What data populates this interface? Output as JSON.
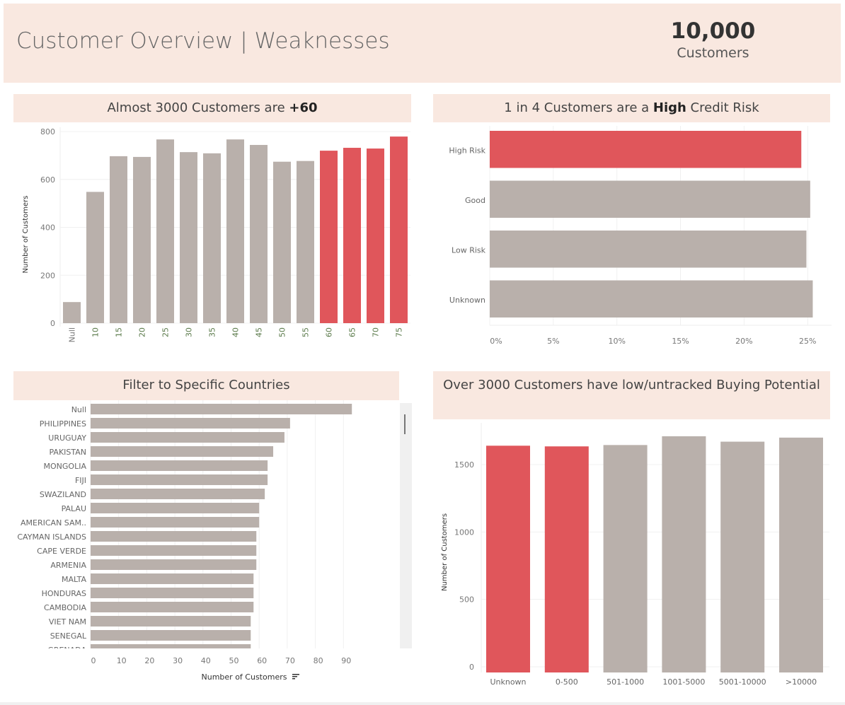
{
  "header": {
    "title": "Customer Overview | Weaknesses",
    "kpi_value": "10,000",
    "kpi_label": "Customers"
  },
  "colors": {
    "highlight": "#e0565b",
    "base": "#b9b0ab",
    "panel_bg": "#f9e8e0"
  },
  "panels": {
    "age": {
      "title_pre": "Almost 3000 Customers are ",
      "title_bold": "+60",
      "title_post": ""
    },
    "credit": {
      "title_pre": "1 in 4 Customers are a ",
      "title_bold": "High",
      "title_post": " Credit Risk"
    },
    "country": {
      "title": "Filter to Specific Countries",
      "sort_icon": "sort-descending-icon"
    },
    "buying": {
      "title": "Over 3000 Customers have low/untracked Buying Potential"
    }
  },
  "chart_data": [
    {
      "type": "bar",
      "orientation": "vertical",
      "ylabel": "Number of Customers",
      "xlabel": "",
      "ylim": [
        0,
        800
      ],
      "yticks": [
        0,
        200,
        400,
        600,
        800
      ],
      "grid": true,
      "categories": [
        "Null",
        "10",
        "15",
        "20",
        "25",
        "30",
        "35",
        "40",
        "45",
        "50",
        "55",
        "60",
        "65",
        "70",
        "75"
      ],
      "values": [
        88,
        548,
        697,
        694,
        767,
        714,
        709,
        767,
        744,
        674,
        677,
        720,
        732,
        729,
        779
      ],
      "highlighted": [
        "60",
        "65",
        "70",
        "75"
      ]
    },
    {
      "type": "bar",
      "orientation": "horizontal",
      "xlabel": "",
      "ylabel": "",
      "xlim": [
        0,
        26
      ],
      "xticks": [
        "0%",
        "5%",
        "10%",
        "15%",
        "20%",
        "25%"
      ],
      "xtick_values": [
        0,
        5,
        10,
        15,
        20,
        25
      ],
      "grid": true,
      "categories": [
        "High Risk",
        "Good",
        "Low Risk",
        "Unknown"
      ],
      "values": [
        24.5,
        25.2,
        24.9,
        25.4
      ],
      "highlighted": [
        "High Risk"
      ]
    },
    {
      "type": "bar",
      "orientation": "horizontal",
      "xlabel": "Number of Customers",
      "xlim": [
        0,
        98
      ],
      "xticks": [
        0,
        10,
        20,
        30,
        40,
        50,
        60,
        70,
        80,
        90
      ],
      "grid": true,
      "categories": [
        "Null",
        "PHILIPPINES",
        "URUGUAY",
        "PAKISTAN",
        "MONGOLIA",
        "FIJI",
        "SWAZILAND",
        "PALAU",
        "AMERICAN SAM..",
        "CAYMAN ISLANDS",
        "CAPE VERDE",
        "ARMENIA",
        "MALTA",
        "HONDURAS",
        "CAMBODIA",
        "VIET NAM",
        "SENEGAL",
        "GRENADA"
      ],
      "values": [
        93,
        71,
        69,
        65,
        63,
        63,
        62,
        60,
        60,
        59,
        59,
        59,
        58,
        58,
        58,
        57,
        57,
        57
      ],
      "highlighted": []
    },
    {
      "type": "bar",
      "orientation": "vertical",
      "ylabel": "Number of Customers",
      "xlabel": "",
      "ylim": [
        0,
        1800
      ],
      "yticks": [
        0,
        500,
        1000,
        1500
      ],
      "grid": true,
      "categories": [
        "Unknown",
        "0-500",
        "501-1000",
        "1001-5000",
        "5001-10000",
        ">10000"
      ],
      "values": [
        1640,
        1635,
        1645,
        1710,
        1670,
        1700
      ],
      "highlighted": [
        "Unknown",
        "0-500"
      ]
    }
  ]
}
